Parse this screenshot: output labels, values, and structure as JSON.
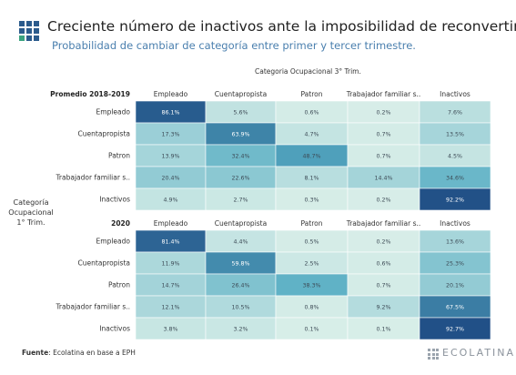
{
  "header": {
    "title": "Creciente número de inactivos ante la imposibilidad de reconvertirse",
    "subtitle": "Probabilidad de cambiar de categoría entre primer  y tercer trimestre."
  },
  "axes": {
    "column_title": "Categoria Ocupacional 3° Trim.",
    "row_title_lines": [
      "Categoría",
      "Ocupacional",
      "1° Trim."
    ]
  },
  "chart_data": {
    "type": "heatmap",
    "columns": [
      "Empleado",
      "Cuentapropista",
      "Patron",
      "Trabajador familiar s..",
      "Inactivos"
    ],
    "rows": [
      "Empleado",
      "Cuentapropista",
      "Patron",
      "Trabajador familiar s..",
      "Inactivos"
    ],
    "color_scale": {
      "min_color": "#d8eee8",
      "mid_color": "#56adc3",
      "max_color": "#1f4c84"
    },
    "panels": [
      {
        "label": "Promedio 2018-2019",
        "values": [
          [
            86.1,
            5.6,
            0.6,
            0.2,
            7.6
          ],
          [
            17.3,
            63.9,
            4.7,
            0.7,
            13.5
          ],
          [
            13.9,
            32.4,
            48.7,
            0.7,
            4.5
          ],
          [
            20.4,
            22.6,
            8.1,
            14.4,
            34.6
          ],
          [
            4.9,
            2.7,
            0.3,
            0.2,
            92.2
          ]
        ],
        "labels": [
          [
            "86.1%",
            "5.6%",
            "0.6%",
            "0.2%",
            "7.6%"
          ],
          [
            "17.3%",
            "63.9%",
            "4.7%",
            "0.7%",
            "13.5%"
          ],
          [
            "13.9%",
            "32.4%",
            "48.7%",
            "0.7%",
            "4.5%"
          ],
          [
            "20.4%",
            "22.6%",
            "8.1%",
            "14.4%",
            "34.6%"
          ],
          [
            "4.9%",
            "2.7%",
            "0.3%",
            "0.2%",
            "92.2%"
          ]
        ]
      },
      {
        "label": "2020",
        "values": [
          [
            81.4,
            4.4,
            0.5,
            0.2,
            13.6
          ],
          [
            11.9,
            59.8,
            2.5,
            0.6,
            25.3
          ],
          [
            14.7,
            26.4,
            38.3,
            0.7,
            20.1
          ],
          [
            12.1,
            10.5,
            0.8,
            9.2,
            67.5
          ],
          [
            3.8,
            3.2,
            0.1,
            0.1,
            92.7
          ]
        ],
        "labels": [
          [
            "81.4%",
            "4.4%",
            "0.5%",
            "0.2%",
            "13.6%"
          ],
          [
            "11.9%",
            "59.8%",
            "2.5%",
            "0.6%",
            "25.3%"
          ],
          [
            "14.7%",
            "26.4%",
            "38.3%",
            "0.7%",
            "20.1%"
          ],
          [
            "12.1%",
            "10.5%",
            "0.8%",
            "9.2%",
            "67.5%"
          ],
          [
            "3.8%",
            "3.2%",
            "0.1%",
            "0.1%",
            "92.7%"
          ]
        ]
      }
    ]
  },
  "footer": {
    "source_label": "Fuente",
    "source_text": ": Ecolatina en base a EPH",
    "brand": "ECOLATINA"
  },
  "colors": {
    "logo_primary": "#2b5b8c",
    "logo_accent": "#3aa37f",
    "subtitle": "#4a7fae"
  }
}
